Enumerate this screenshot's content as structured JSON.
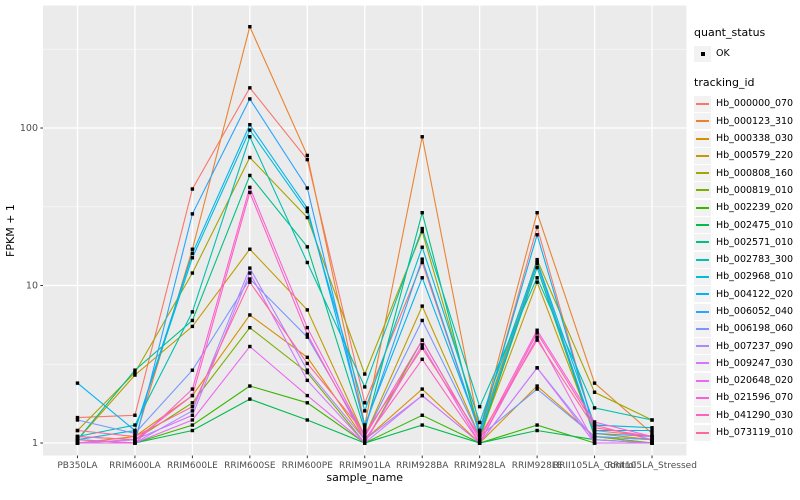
{
  "chart_data": {
    "type": "line",
    "title": "",
    "xlabel": "sample_name",
    "ylabel": "FPKM + 1",
    "y_scale": "log10",
    "grid": true,
    "legend_position": "right",
    "y_ticks": [
      {
        "value": 1,
        "label": "1"
      },
      {
        "value": 10,
        "label": "10"
      },
      {
        "value": 100,
        "label": "100"
      }
    ],
    "y_minor_breaks": [
      3.1623,
      31.623,
      316.23
    ],
    "ylim_log": [
      -0.0794,
      2.778
    ],
    "categories": [
      "PB350LA",
      "RRIM600LA",
      "RRIM600LE",
      "RRIM600SE",
      "RRIM600PE",
      "RRIM901LA",
      "RRIM928BA",
      "RRIM928LA",
      "RRIM928LE",
      "RRII105LA_Control",
      "RRII105LA_Stressed"
    ],
    "legend": {
      "quant_title": "quant_status",
      "quant_label": "OK",
      "series_title": "tracking_id"
    },
    "series": [
      {
        "name": "Hb_000000_070",
        "color": "#F8766D",
        "values": [
          1.45,
          1.5,
          41,
          180,
          63,
          1.8,
          14,
          1.15,
          23.5,
          1.2,
          1.1
        ]
      },
      {
        "name": "Hb_000123_310",
        "color": "#EA8331",
        "values": [
          1.1,
          1.05,
          17,
          440,
          67,
          1.3,
          88,
          1.2,
          29,
          2.4,
          1.15
        ]
      },
      {
        "name": "Hb_000338_030",
        "color": "#D89000",
        "values": [
          1.0,
          1.1,
          2.0,
          6.5,
          3.5,
          1.05,
          2.2,
          1.0,
          2.3,
          1.1,
          1.0
        ]
      },
      {
        "name": "Hb_000579_220",
        "color": "#C09B00",
        "values": [
          1.05,
          2.7,
          5.5,
          17,
          7.0,
          1.1,
          7.4,
          1.1,
          10.5,
          1.15,
          1.05
        ]
      },
      {
        "name": "Hb_000808_160",
        "color": "#A3A500",
        "values": [
          1.2,
          2.8,
          12,
          65,
          27,
          2.74,
          22,
          1.2,
          14.6,
          2.1,
          1.4
        ]
      },
      {
        "name": "Hb_000819_010",
        "color": "#7CAE00",
        "values": [
          1.0,
          1.05,
          1.8,
          5.4,
          2.8,
          1.0,
          4.5,
          1.05,
          14,
          1.1,
          1.0
        ]
      },
      {
        "name": "Hb_002239_020",
        "color": "#39B600",
        "values": [
          1.0,
          1.0,
          1.3,
          2.3,
          1.8,
          1.0,
          1.5,
          1.0,
          1.3,
          1.0,
          1.0
        ]
      },
      {
        "name": "Hb_002475_010",
        "color": "#00BB4E",
        "values": [
          1.0,
          1.0,
          1.2,
          1.9,
          1.4,
          1.0,
          1.3,
          1.0,
          1.2,
          1.05,
          1.0
        ]
      },
      {
        "name": "Hb_002571_010",
        "color": "#00C087",
        "values": [
          1.05,
          2.9,
          6.0,
          50,
          17.6,
          1.2,
          29,
          1.1,
          13,
          1.1,
          1.05
        ]
      },
      {
        "name": "Hb_002783_300",
        "color": "#00C0B2",
        "values": [
          1.1,
          1.3,
          6.8,
          88,
          14,
          2.27,
          23,
          1.7,
          11.2,
          1.67,
          1.4
        ]
      },
      {
        "name": "Hb_002968_010",
        "color": "#00BCD8",
        "values": [
          1.05,
          1.2,
          15,
          97,
          29.5,
          1.6,
          17.5,
          1.35,
          14.2,
          1.3,
          1.25
        ]
      },
      {
        "name": "Hb_004122_020",
        "color": "#00B3F2",
        "values": [
          2.4,
          1.2,
          16,
          105,
          31,
          1.3,
          11.2,
          1.2,
          21,
          1.2,
          1.2
        ]
      },
      {
        "name": "Hb_006052_040",
        "color": "#29A3FF",
        "values": [
          1.05,
          1.0,
          28.5,
          153,
          41.6,
          1.25,
          14.7,
          1.15,
          13.8,
          1.15,
          1.1
        ]
      },
      {
        "name": "Hb_006198_060",
        "color": "#7997FF",
        "values": [
          1.4,
          1.15,
          2.9,
          11,
          4.7,
          1.1,
          6.0,
          1.1,
          2.2,
          1.1,
          1.05
        ]
      },
      {
        "name": "Hb_007237_090",
        "color": "#AC88FF",
        "values": [
          1.0,
          1.0,
          1.6,
          12.9,
          2.9,
          1.05,
          2.0,
          1.0,
          3.0,
          1.05,
          1.0
        ]
      },
      {
        "name": "Hb_009247_030",
        "color": "#D277FF",
        "values": [
          1.0,
          1.05,
          1.5,
          12,
          2.5,
          1.0,
          2.0,
          1.0,
          3.0,
          1.0,
          1.0
        ]
      },
      {
        "name": "Hb_020648_020",
        "color": "#EC69EF",
        "values": [
          1.0,
          1.0,
          1.4,
          4.1,
          2.0,
          1.0,
          4.2,
          1.0,
          4.7,
          1.0,
          1.0
        ]
      },
      {
        "name": "Hb_021596_070",
        "color": "#FB61D7",
        "values": [
          1.05,
          1.0,
          2.2,
          42,
          5.4,
          1.1,
          4.5,
          1.05,
          5.2,
          1.36,
          1.1
        ]
      },
      {
        "name": "Hb_041290_030",
        "color": "#FF61BF",
        "values": [
          1.1,
          1.05,
          2.0,
          39,
          4.9,
          1.05,
          3.4,
          1.0,
          5.0,
          1.3,
          1.05
        ]
      },
      {
        "name": "Hb_073119_010",
        "color": "#FF689F",
        "values": [
          1.2,
          1.1,
          1.7,
          10.5,
          3.2,
          1.15,
          4.0,
          1.1,
          4.5,
          1.25,
          1.1
        ]
      }
    ],
    "colors": {
      "panel_bg": "#EBEBEB",
      "grid_major": "#FFFFFF",
      "grid_minor": "#F7F7F7",
      "axis_text": "#4D4D4D",
      "tick_mark": "#333333",
      "point": "#000000",
      "legend_key_bg": "#F2F2F2"
    }
  }
}
